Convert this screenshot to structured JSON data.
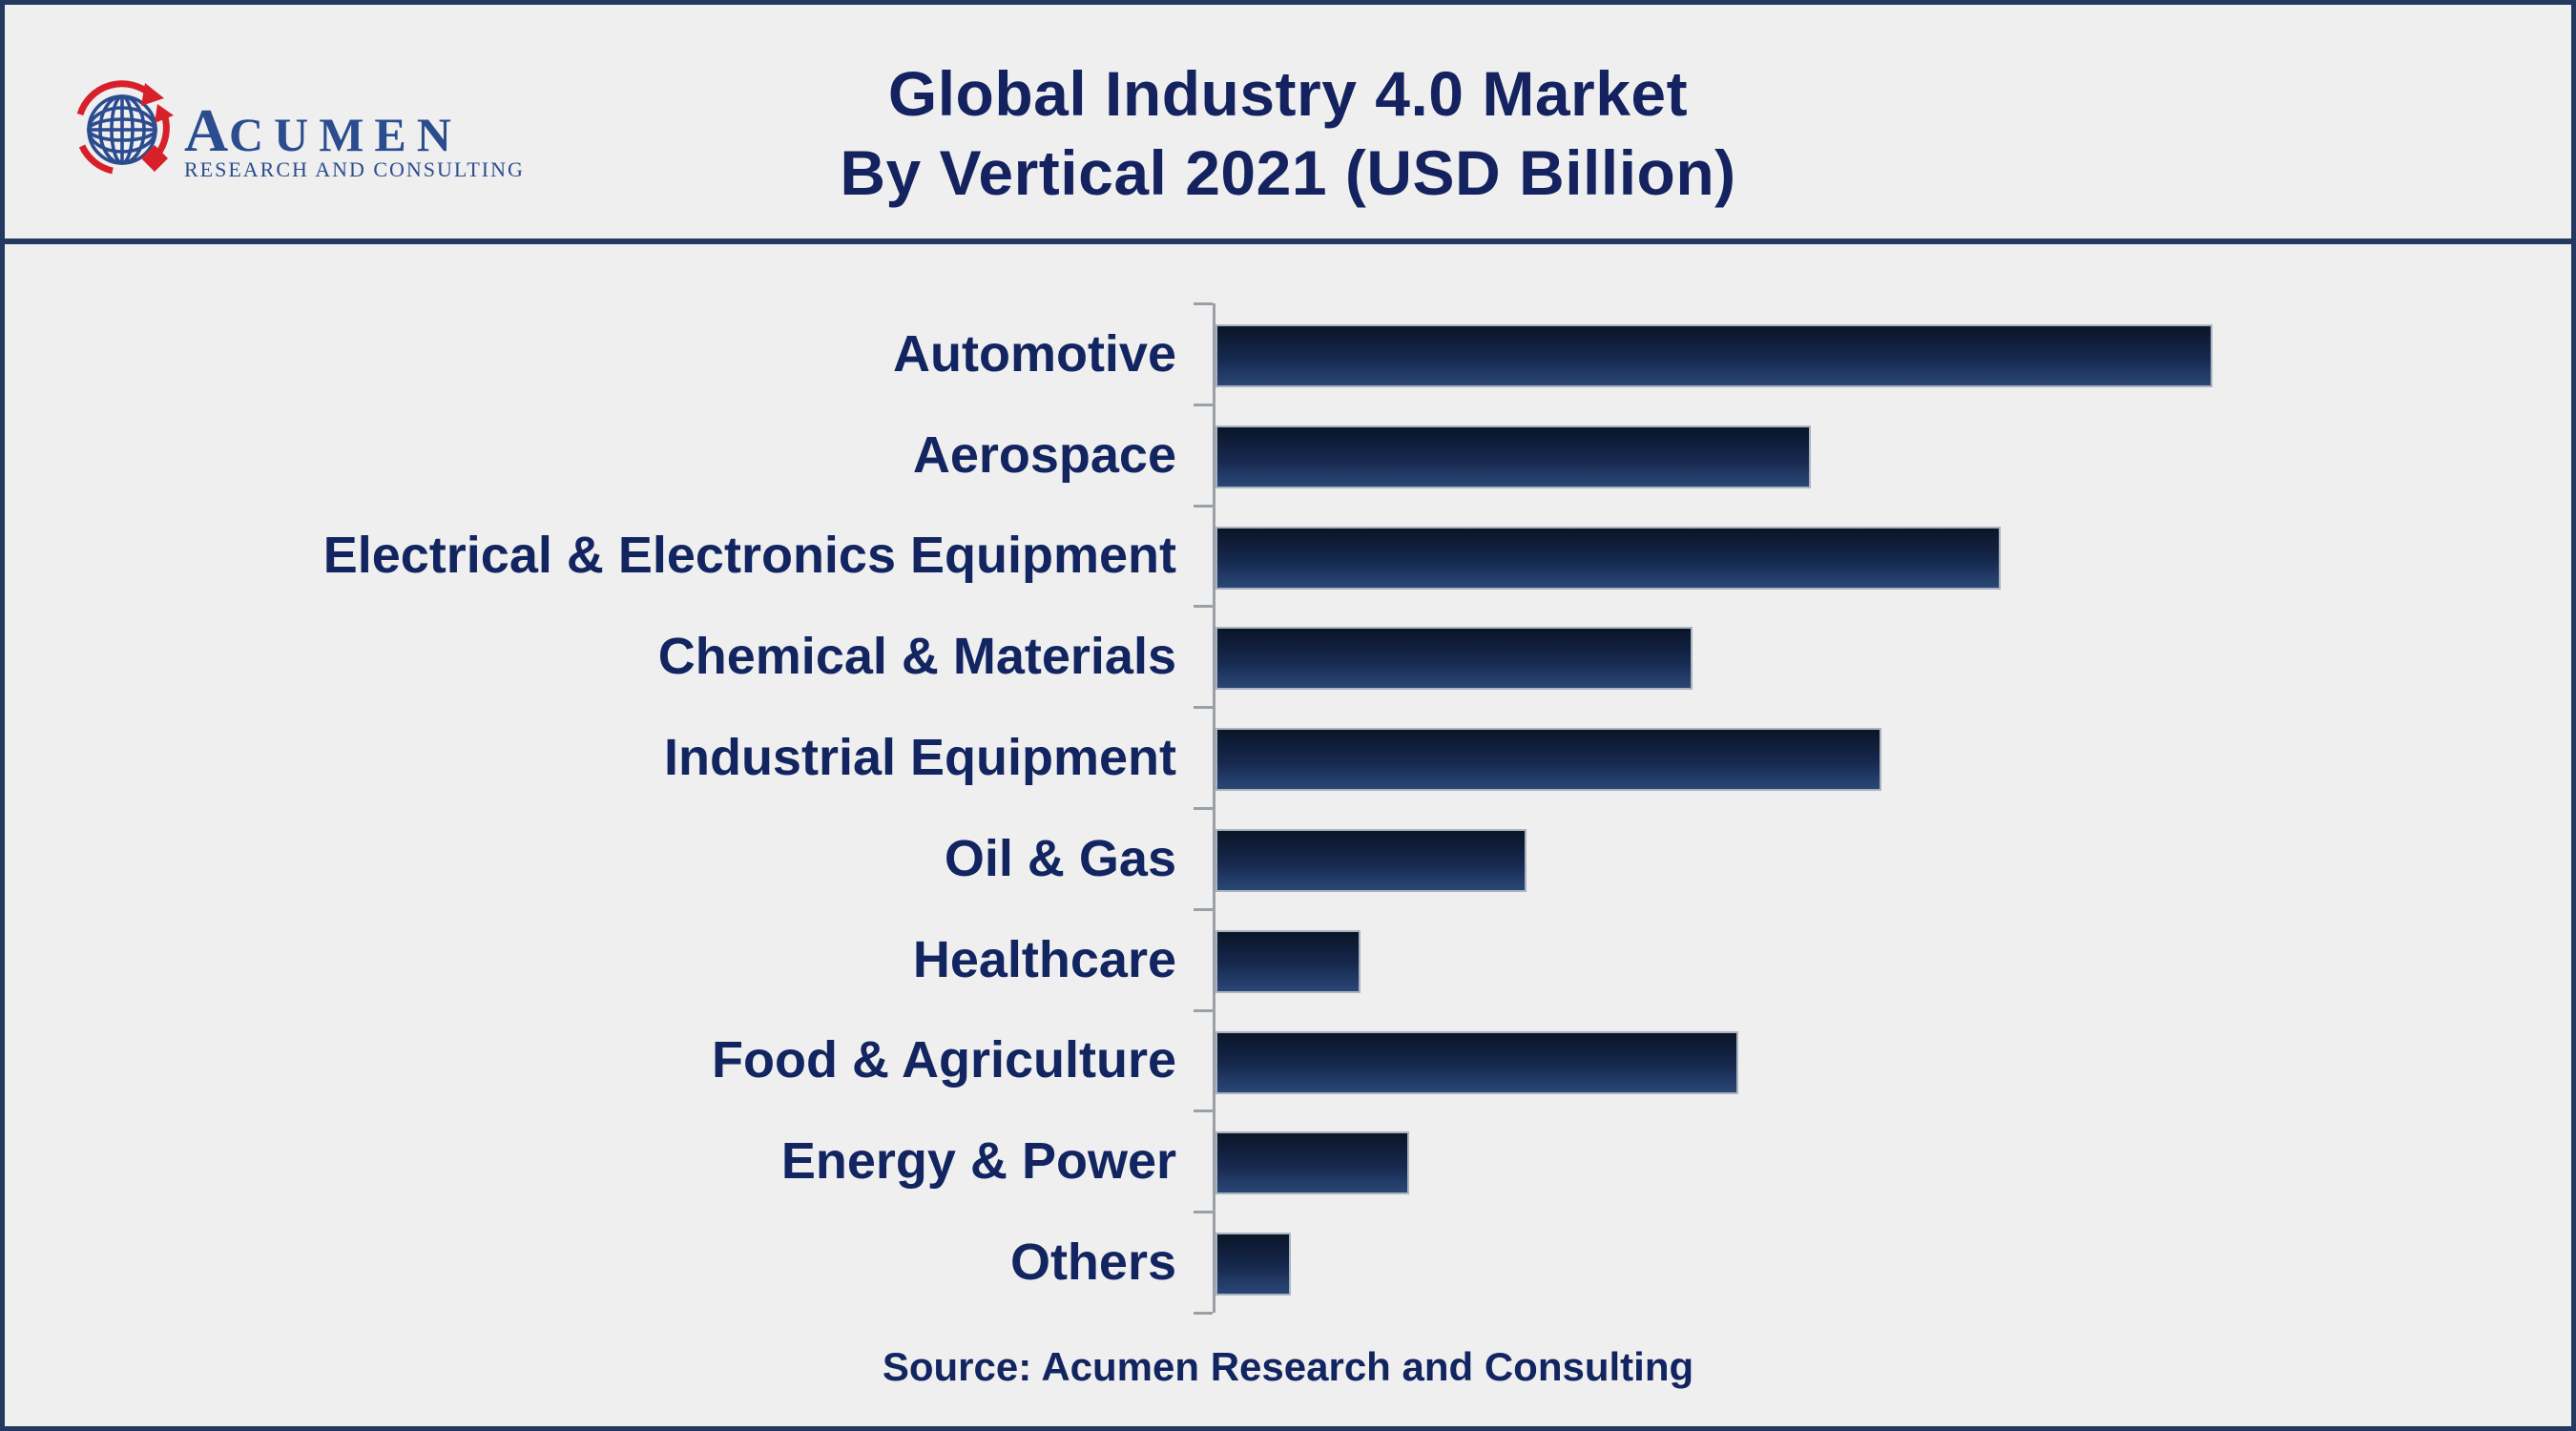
{
  "header": {
    "logo": {
      "brand_first_letter": "A",
      "brand_rest": "CUMEN",
      "tagline": "RESEARCH AND CONSULTING"
    },
    "title_line1": "Global Industry 4.0 Market",
    "title_line2": "By Vertical 2021 (USD Billion)"
  },
  "footer": {
    "source": "Source: Acumen Research and Consulting"
  },
  "colors": {
    "background": "#efefef",
    "border_and_separator": "#233a60",
    "title_text": "#14235f",
    "label_text": "#122560",
    "bar_gradient_top": "#0a1527",
    "bar_gradient_bottom": "#2a4674",
    "bar_border": "#aab3c0",
    "axis_line": "#9aa0a6",
    "logo_blue": "#2b4c8e",
    "logo_red": "#d7202a"
  },
  "chart_data": {
    "type": "bar",
    "orientation": "horizontal",
    "title": "Global Industry 4.0 Market By Vertical 2021 (USD Billion)",
    "categories": [
      "Automotive",
      "Aerospace",
      "Electrical & Electronics Equipment",
      "Chemical & Materials",
      "Industrial Equipment",
      "Oil & Gas",
      "Healthcare",
      "Food & Agriculture",
      "Energy & Power",
      "Others"
    ],
    "values": [
      100,
      59.6,
      78.7,
      47.6,
      66.7,
      30.9,
      14.2,
      52.3,
      19.1,
      7.2
    ],
    "value_unit": "relative bar length, % of longest bar (x-axis shown without tick labels or gridlines)",
    "xlabel": "",
    "ylabel": "",
    "grid": false,
    "legend": false,
    "source_note": "Source: Acumen Research and Consulting"
  }
}
